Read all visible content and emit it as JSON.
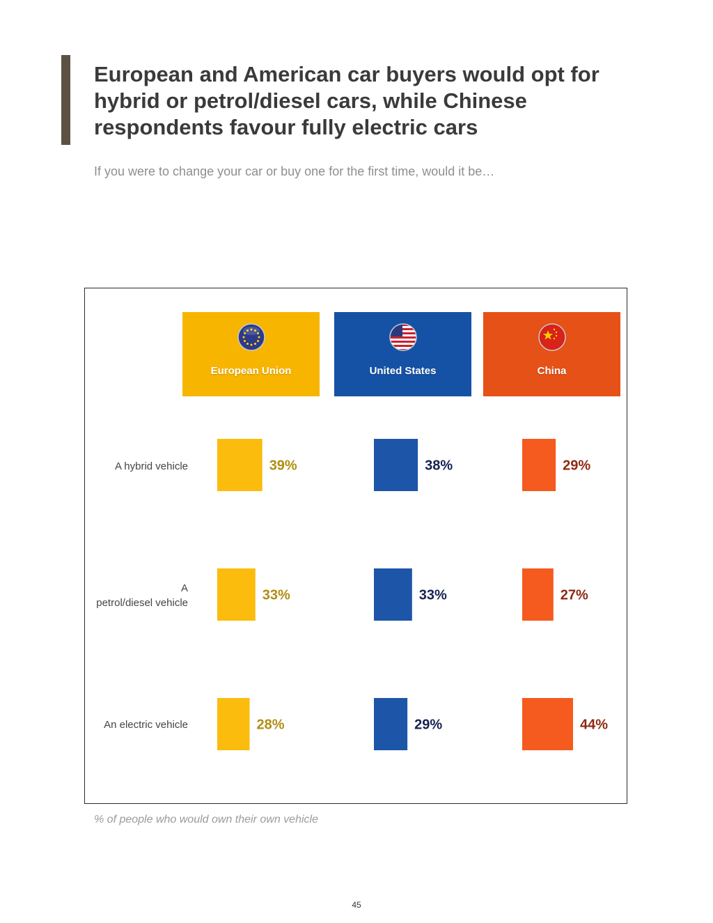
{
  "title": "European and American car buyers would opt for hybrid or petrol/diesel cars, while Chinese respondents favour fully electric cars",
  "subtitle": "If you were to change your car or buy one for the first time, would it be…",
  "footnote": "% of people who would own their own vehicle",
  "page_number": "45",
  "colors": {
    "accent_bar": "#5b5244",
    "eu_header": "#f7b500",
    "us_header": "#1552a6",
    "cn_header": "#e55116",
    "eu_square": "#fbbc0d",
    "us_square": "#1d55a8",
    "cn_square": "#f55a1e",
    "eu_value": "#b08e12",
    "us_value": "#17214f",
    "cn_value": "#8c2a12"
  },
  "chart_data": {
    "type": "table",
    "title": "European and American car buyers would opt for hybrid or petrol/diesel cars, while Chinese respondents favour fully electric cars",
    "subtitle": "If you were to change your car or buy one for the first time, would it be…",
    "categories": [
      "A hybrid vehicle",
      "A petrol/diesel vehicle",
      "An electric vehicle"
    ],
    "series": [
      {
        "name": "European Union",
        "flag_icon": "eu-flag-icon",
        "values": [
          39,
          33,
          28
        ],
        "labels": [
          "39%",
          "33%",
          "28%"
        ]
      },
      {
        "name": "United States",
        "flag_icon": "us-flag-icon",
        "values": [
          38,
          33,
          29
        ],
        "labels": [
          "38%",
          "33%",
          "29%"
        ]
      },
      {
        "name": "China",
        "flag_icon": "china-flag-icon",
        "values": [
          29,
          27,
          44
        ],
        "labels": [
          "29%",
          "27%",
          "44%"
        ]
      }
    ],
    "encoding": "square width proportional to percentage",
    "unit": "%"
  }
}
